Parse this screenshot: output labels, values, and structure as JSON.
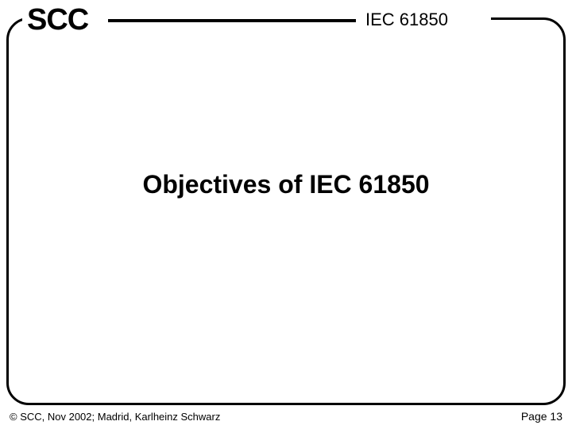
{
  "header": {
    "logo": "SCC",
    "title": "IEC 61850"
  },
  "main": {
    "title": "Objectives of IEC 61850"
  },
  "footer": {
    "copyright": "© SCC, Nov 2002; Madrid, Karlheinz Schwarz",
    "page": "Page 13"
  },
  "style": {
    "border_color": "#000000",
    "border_width": 3,
    "border_radius": 28,
    "background_color": "#ffffff",
    "logo_fontsize": 38,
    "header_title_fontsize": 22,
    "main_title_fontsize": 32,
    "footer_fontsize": 13
  }
}
